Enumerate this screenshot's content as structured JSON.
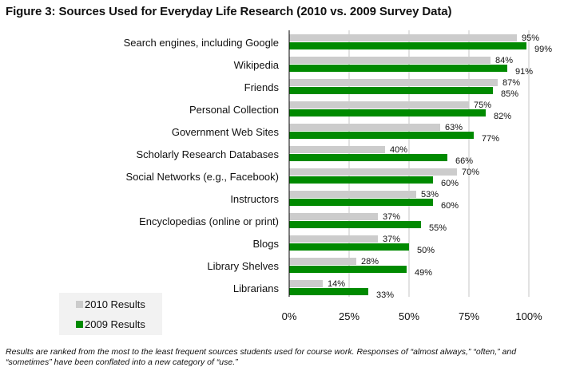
{
  "chart_data": {
    "type": "bar",
    "orientation": "horizontal",
    "title": "Figure 3: Sources Used for Everyday Life Research (2010 vs. 2009 Survey Data)",
    "xlabel": "",
    "ylabel": "",
    "xlim": [
      0,
      100
    ],
    "x_ticks": [
      "0%",
      "25%",
      "50%",
      "75%",
      "100%"
    ],
    "x_tick_values": [
      0,
      25,
      50,
      75,
      100
    ],
    "grid": true,
    "legend_placement": "bottom-left",
    "categories": [
      "Search engines, including Google",
      "Wikipedia",
      "Friends",
      "Personal Collection",
      "Government Web Sites",
      "Scholarly Research Databases",
      "Social Networks (e.g., Facebook)",
      "Instructors",
      "Encyclopedias (online or print)",
      "Blogs",
      "Library Shelves",
      "Librarians"
    ],
    "series": [
      {
        "name": "2010 Results",
        "color": "#cccccc",
        "values": [
          95,
          84,
          87,
          75,
          63,
          40,
          70,
          53,
          37,
          37,
          28,
          14
        ]
      },
      {
        "name": "2009 Results",
        "color": "#008a00",
        "values": [
          99,
          91,
          85,
          82,
          77,
          66,
          60,
          60,
          55,
          50,
          49,
          33
        ]
      }
    ],
    "value_suffix": "%",
    "footnote": "Results are ranked from the most to the least frequent sources students used for course work. Responses of “almost always,” “often,” and “sometimes” have been conflated into a new category of “use.”"
  },
  "legend": {
    "items": [
      {
        "label": "2010 Results",
        "color": "#cccccc"
      },
      {
        "label": "2009 Results",
        "color": "#008a00"
      }
    ]
  }
}
